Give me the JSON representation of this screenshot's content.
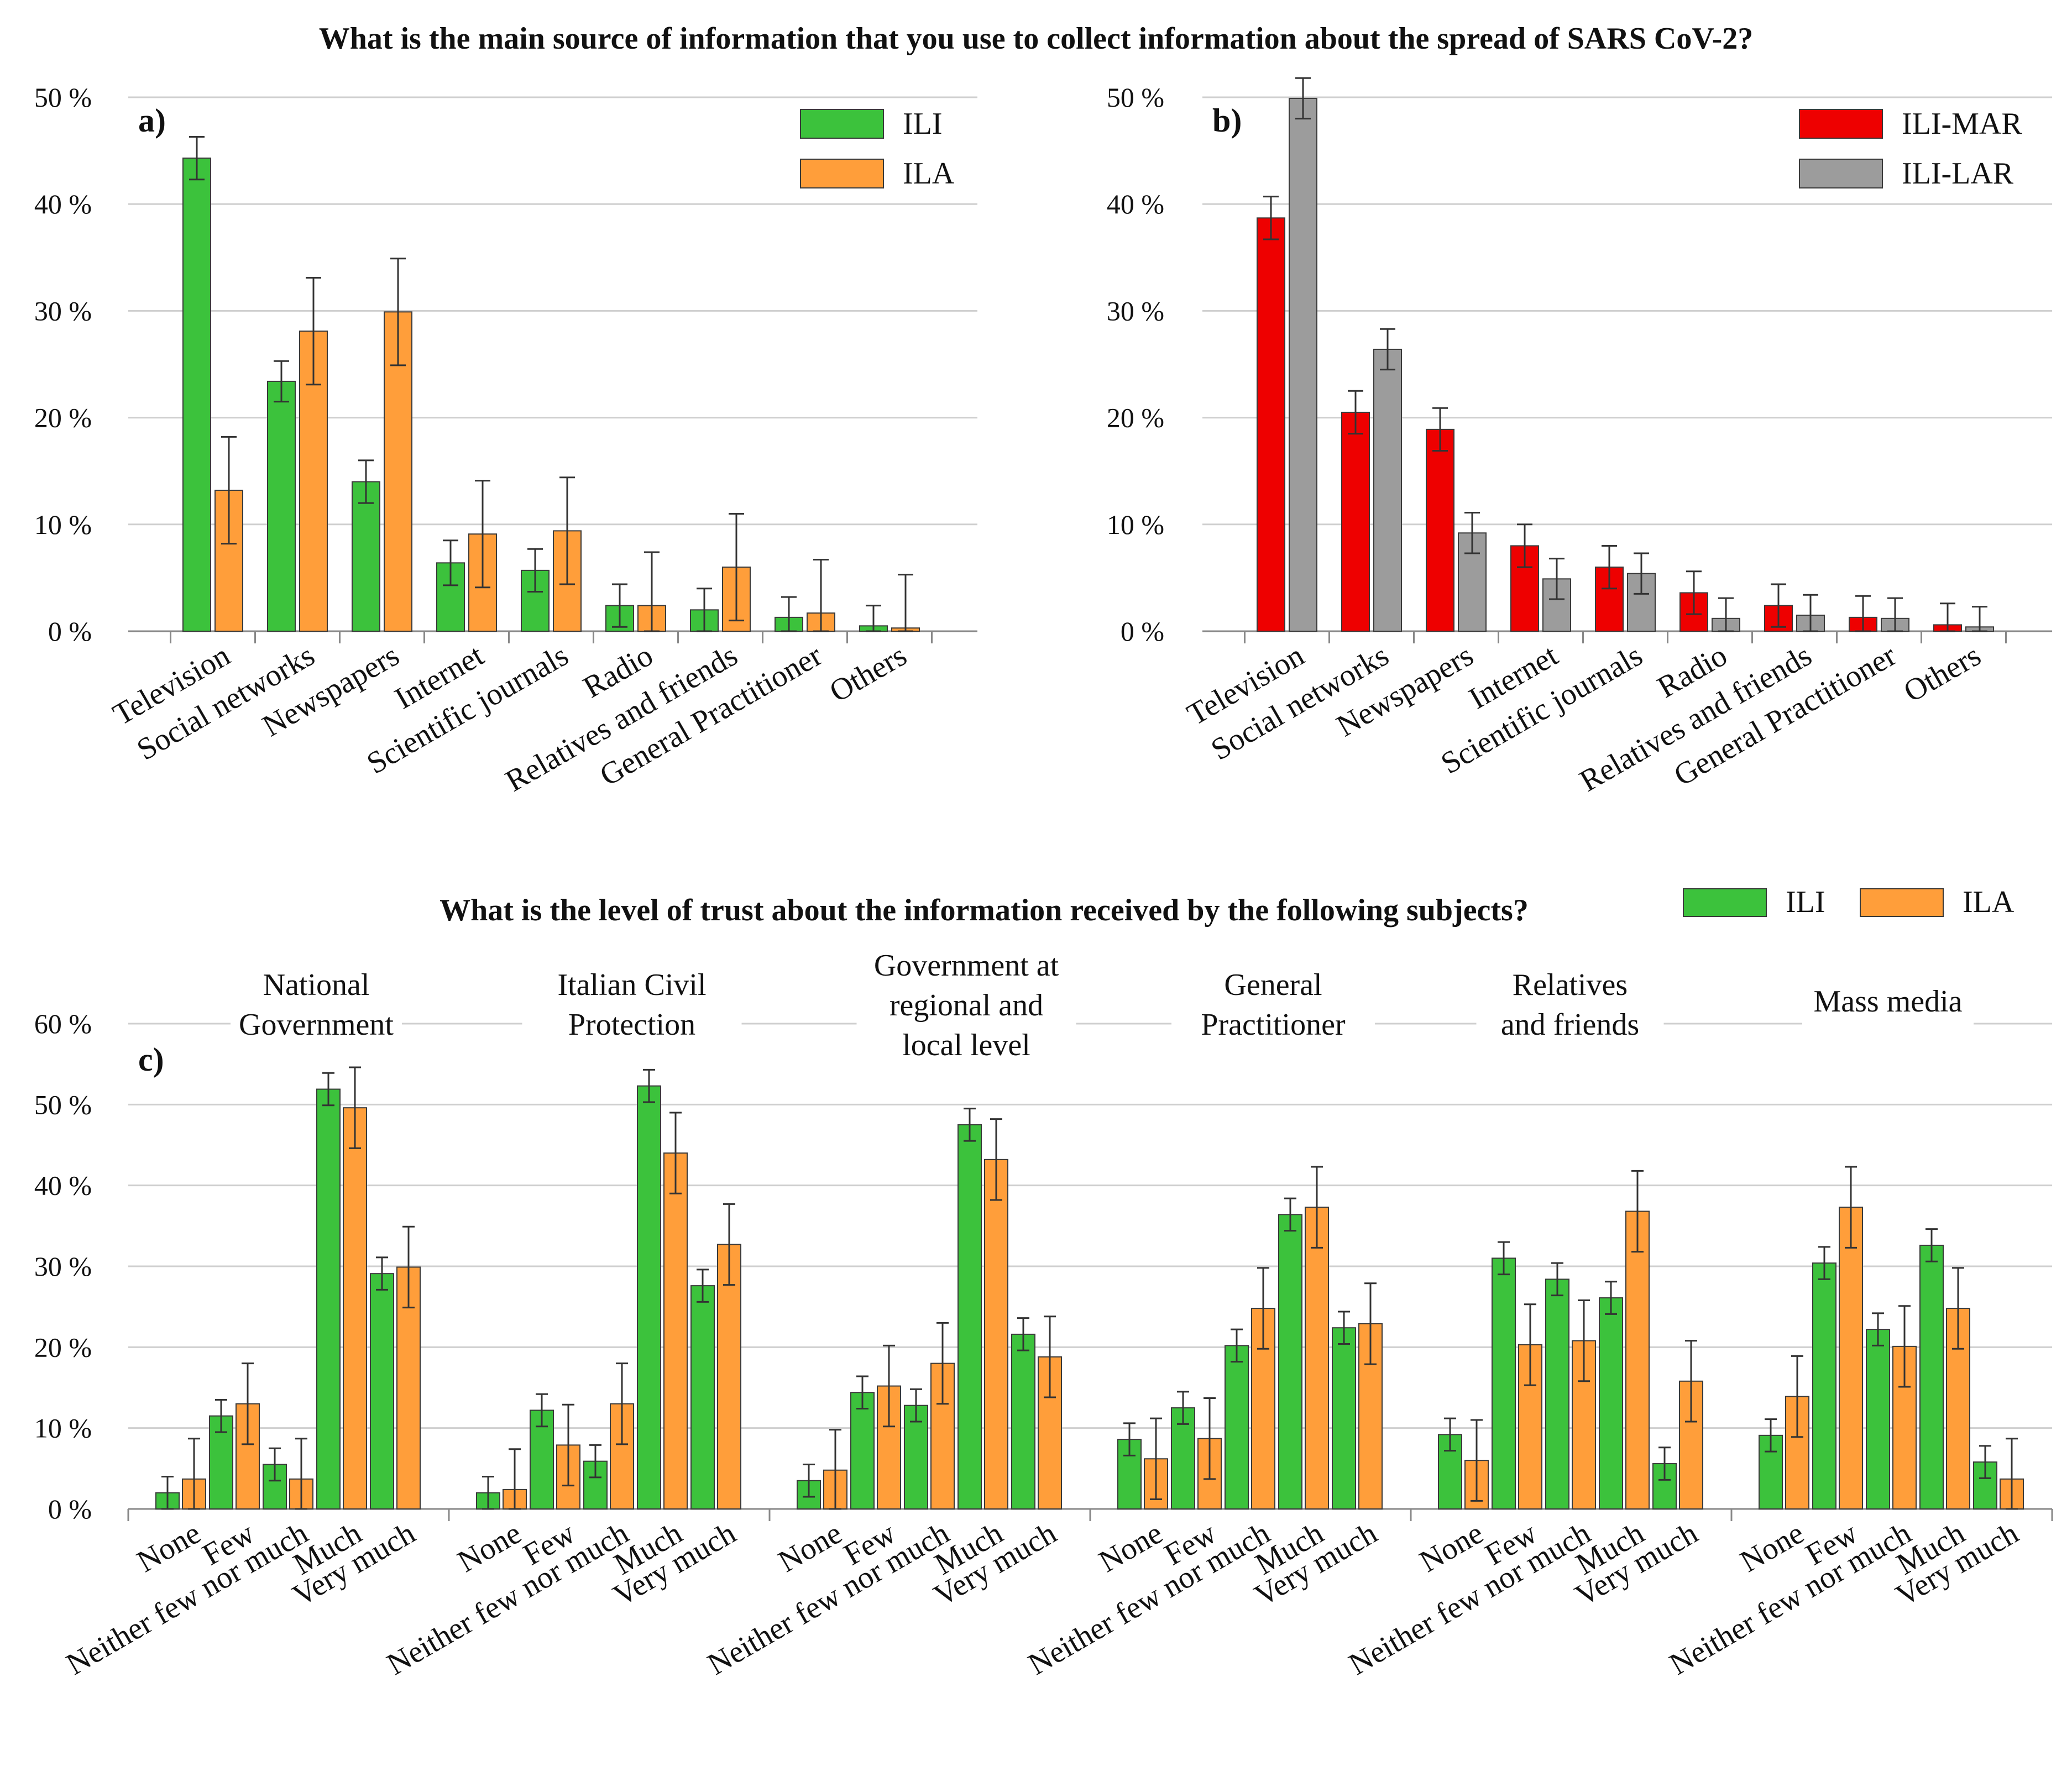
{
  "colors": {
    "ILI": "#3cc23c",
    "ILA": "#ff9e3a",
    "ILI-MAR": "#ee0000",
    "ILI-LAR": "#9c9c9c"
  },
  "top_title": "What is the main source of information that you use to collect information about the spread of SARS CoV-2?",
  "bottom_title": "What is the level of trust about the information received by the following subjects?",
  "y_ticks_top": [
    "0 %",
    "10 %",
    "20 %",
    "30 %",
    "40 %",
    "50 %"
  ],
  "y_ticks_bottom": [
    "0 %",
    "10 %",
    "20 %",
    "30 %",
    "40 %",
    "50 %",
    "60 %"
  ],
  "chart_data": [
    {
      "panel": "a)",
      "type": "bar",
      "title": "What is the main source of information that you use to collect information about the spread of SARS CoV-2?",
      "categories": [
        "Television",
        "Social networks",
        "Newspapers",
        "Internet",
        "Scientific journals",
        "Radio",
        "Relatives and friends",
        "General Practitioner",
        "Others"
      ],
      "ylim": [
        0,
        50
      ],
      "ylabel": "",
      "legend": "top-right",
      "series": [
        {
          "name": "ILI",
          "values": [
            44.3,
            23.4,
            14.0,
            6.4,
            5.7,
            2.4,
            2.0,
            1.3,
            0.5
          ],
          "err": [
            2.0,
            1.9,
            2.0,
            2.1,
            2.0,
            2.0,
            2.0,
            1.9,
            1.9
          ]
        },
        {
          "name": "ILA",
          "values": [
            13.2,
            28.1,
            29.9,
            9.1,
            9.4,
            2.4,
            6.0,
            1.7,
            0.3
          ],
          "err": [
            5.0,
            5.0,
            5.0,
            5.0,
            5.0,
            5.0,
            5.0,
            5.0,
            5.0
          ]
        }
      ]
    },
    {
      "panel": "b)",
      "type": "bar",
      "categories": [
        "Television",
        "Social networks",
        "Newspapers",
        "Internet",
        "Scientific journals",
        "Radio",
        "Relatives and friends",
        "General Practitioner",
        "Others"
      ],
      "ylim": [
        0,
        50
      ],
      "ylabel": "",
      "legend": "top-right",
      "series": [
        {
          "name": "ILI-MAR",
          "values": [
            38.7,
            20.5,
            18.9,
            8.0,
            6.0,
            3.6,
            2.4,
            1.3,
            0.6
          ],
          "err": [
            2.0,
            2.0,
            2.0,
            2.0,
            2.0,
            2.0,
            2.0,
            2.0,
            2.0
          ]
        },
        {
          "name": "ILI-LAR",
          "values": [
            49.9,
            26.4,
            9.2,
            4.9,
            5.4,
            1.2,
            1.5,
            1.2,
            0.4
          ],
          "err": [
            1.9,
            1.9,
            1.9,
            1.9,
            1.9,
            1.9,
            1.9,
            1.9,
            1.9
          ]
        }
      ]
    },
    {
      "panel": "c)",
      "type": "bar",
      "title": "What is the level of trust about the information received by the following subjects?",
      "categories": [
        "None",
        "Few",
        "Neither few nor much",
        "Much",
        "Very much"
      ],
      "ylim": [
        0,
        60
      ],
      "ylabel": "",
      "legend": "top-right",
      "groups": [
        {
          "name": "National Government",
          "title_lines": [
            "National",
            "Government"
          ],
          "ILI": [
            2.0,
            11.5,
            5.5,
            51.9,
            29.1
          ],
          "ILI_err": [
            2.0,
            2.0,
            2.0,
            2.0,
            2.0
          ],
          "ILA": [
            3.7,
            13.0,
            3.7,
            49.6,
            29.9
          ],
          "ILA_err": [
            5.0,
            5.0,
            5.0,
            5.0,
            5.0
          ]
        },
        {
          "name": "Italian Civil Protection",
          "title_lines": [
            "Italian Civil",
            "Protection"
          ],
          "ILI": [
            2.0,
            12.2,
            5.9,
            52.3,
            27.6
          ],
          "ILI_err": [
            2.0,
            2.0,
            2.0,
            2.0,
            2.0
          ],
          "ILA": [
            2.4,
            7.9,
            13.0,
            44.0,
            32.7
          ],
          "ILA_err": [
            5.0,
            5.0,
            5.0,
            5.0,
            5.0
          ]
        },
        {
          "name": "Government at regional and local level",
          "title_lines": [
            "Government at",
            "regional and",
            "local level"
          ],
          "ILI": [
            3.5,
            14.4,
            12.8,
            47.5,
            21.6
          ],
          "ILI_err": [
            2.0,
            2.0,
            2.0,
            2.0,
            2.0
          ],
          "ILA": [
            4.8,
            15.2,
            18.0,
            43.2,
            18.8
          ],
          "ILA_err": [
            5.0,
            5.0,
            5.0,
            5.0,
            5.0
          ]
        },
        {
          "name": "General Practitioner",
          "title_lines": [
            "General",
            "Practitioner"
          ],
          "ILI": [
            8.6,
            12.5,
            20.2,
            36.4,
            22.4
          ],
          "ILI_err": [
            2.0,
            2.0,
            2.0,
            2.0,
            2.0
          ],
          "ILA": [
            6.2,
            8.7,
            24.8,
            37.3,
            22.9
          ],
          "ILA_err": [
            5.0,
            5.0,
            5.0,
            5.0,
            5.0
          ]
        },
        {
          "name": "Relatives and friends",
          "title_lines": [
            "Relatives",
            "and friends"
          ],
          "ILI": [
            9.2,
            31.0,
            28.4,
            26.1,
            5.6
          ],
          "ILI_err": [
            2.0,
            2.0,
            2.0,
            2.0,
            2.0
          ],
          "ILA": [
            6.0,
            20.3,
            20.8,
            36.8,
            15.8
          ],
          "ILA_err": [
            5.0,
            5.0,
            5.0,
            5.0,
            5.0
          ]
        },
        {
          "name": "Mass media",
          "title_lines": [
            "Mass media"
          ],
          "ILI": [
            9.1,
            30.4,
            22.2,
            32.6,
            5.8
          ],
          "ILI_err": [
            2.0,
            2.0,
            2.0,
            2.0,
            2.0
          ],
          "ILA": [
            13.9,
            37.3,
            20.1,
            24.8,
            3.7
          ],
          "ILA_err": [
            5.0,
            5.0,
            5.0,
            5.0,
            5.0
          ]
        }
      ]
    }
  ]
}
